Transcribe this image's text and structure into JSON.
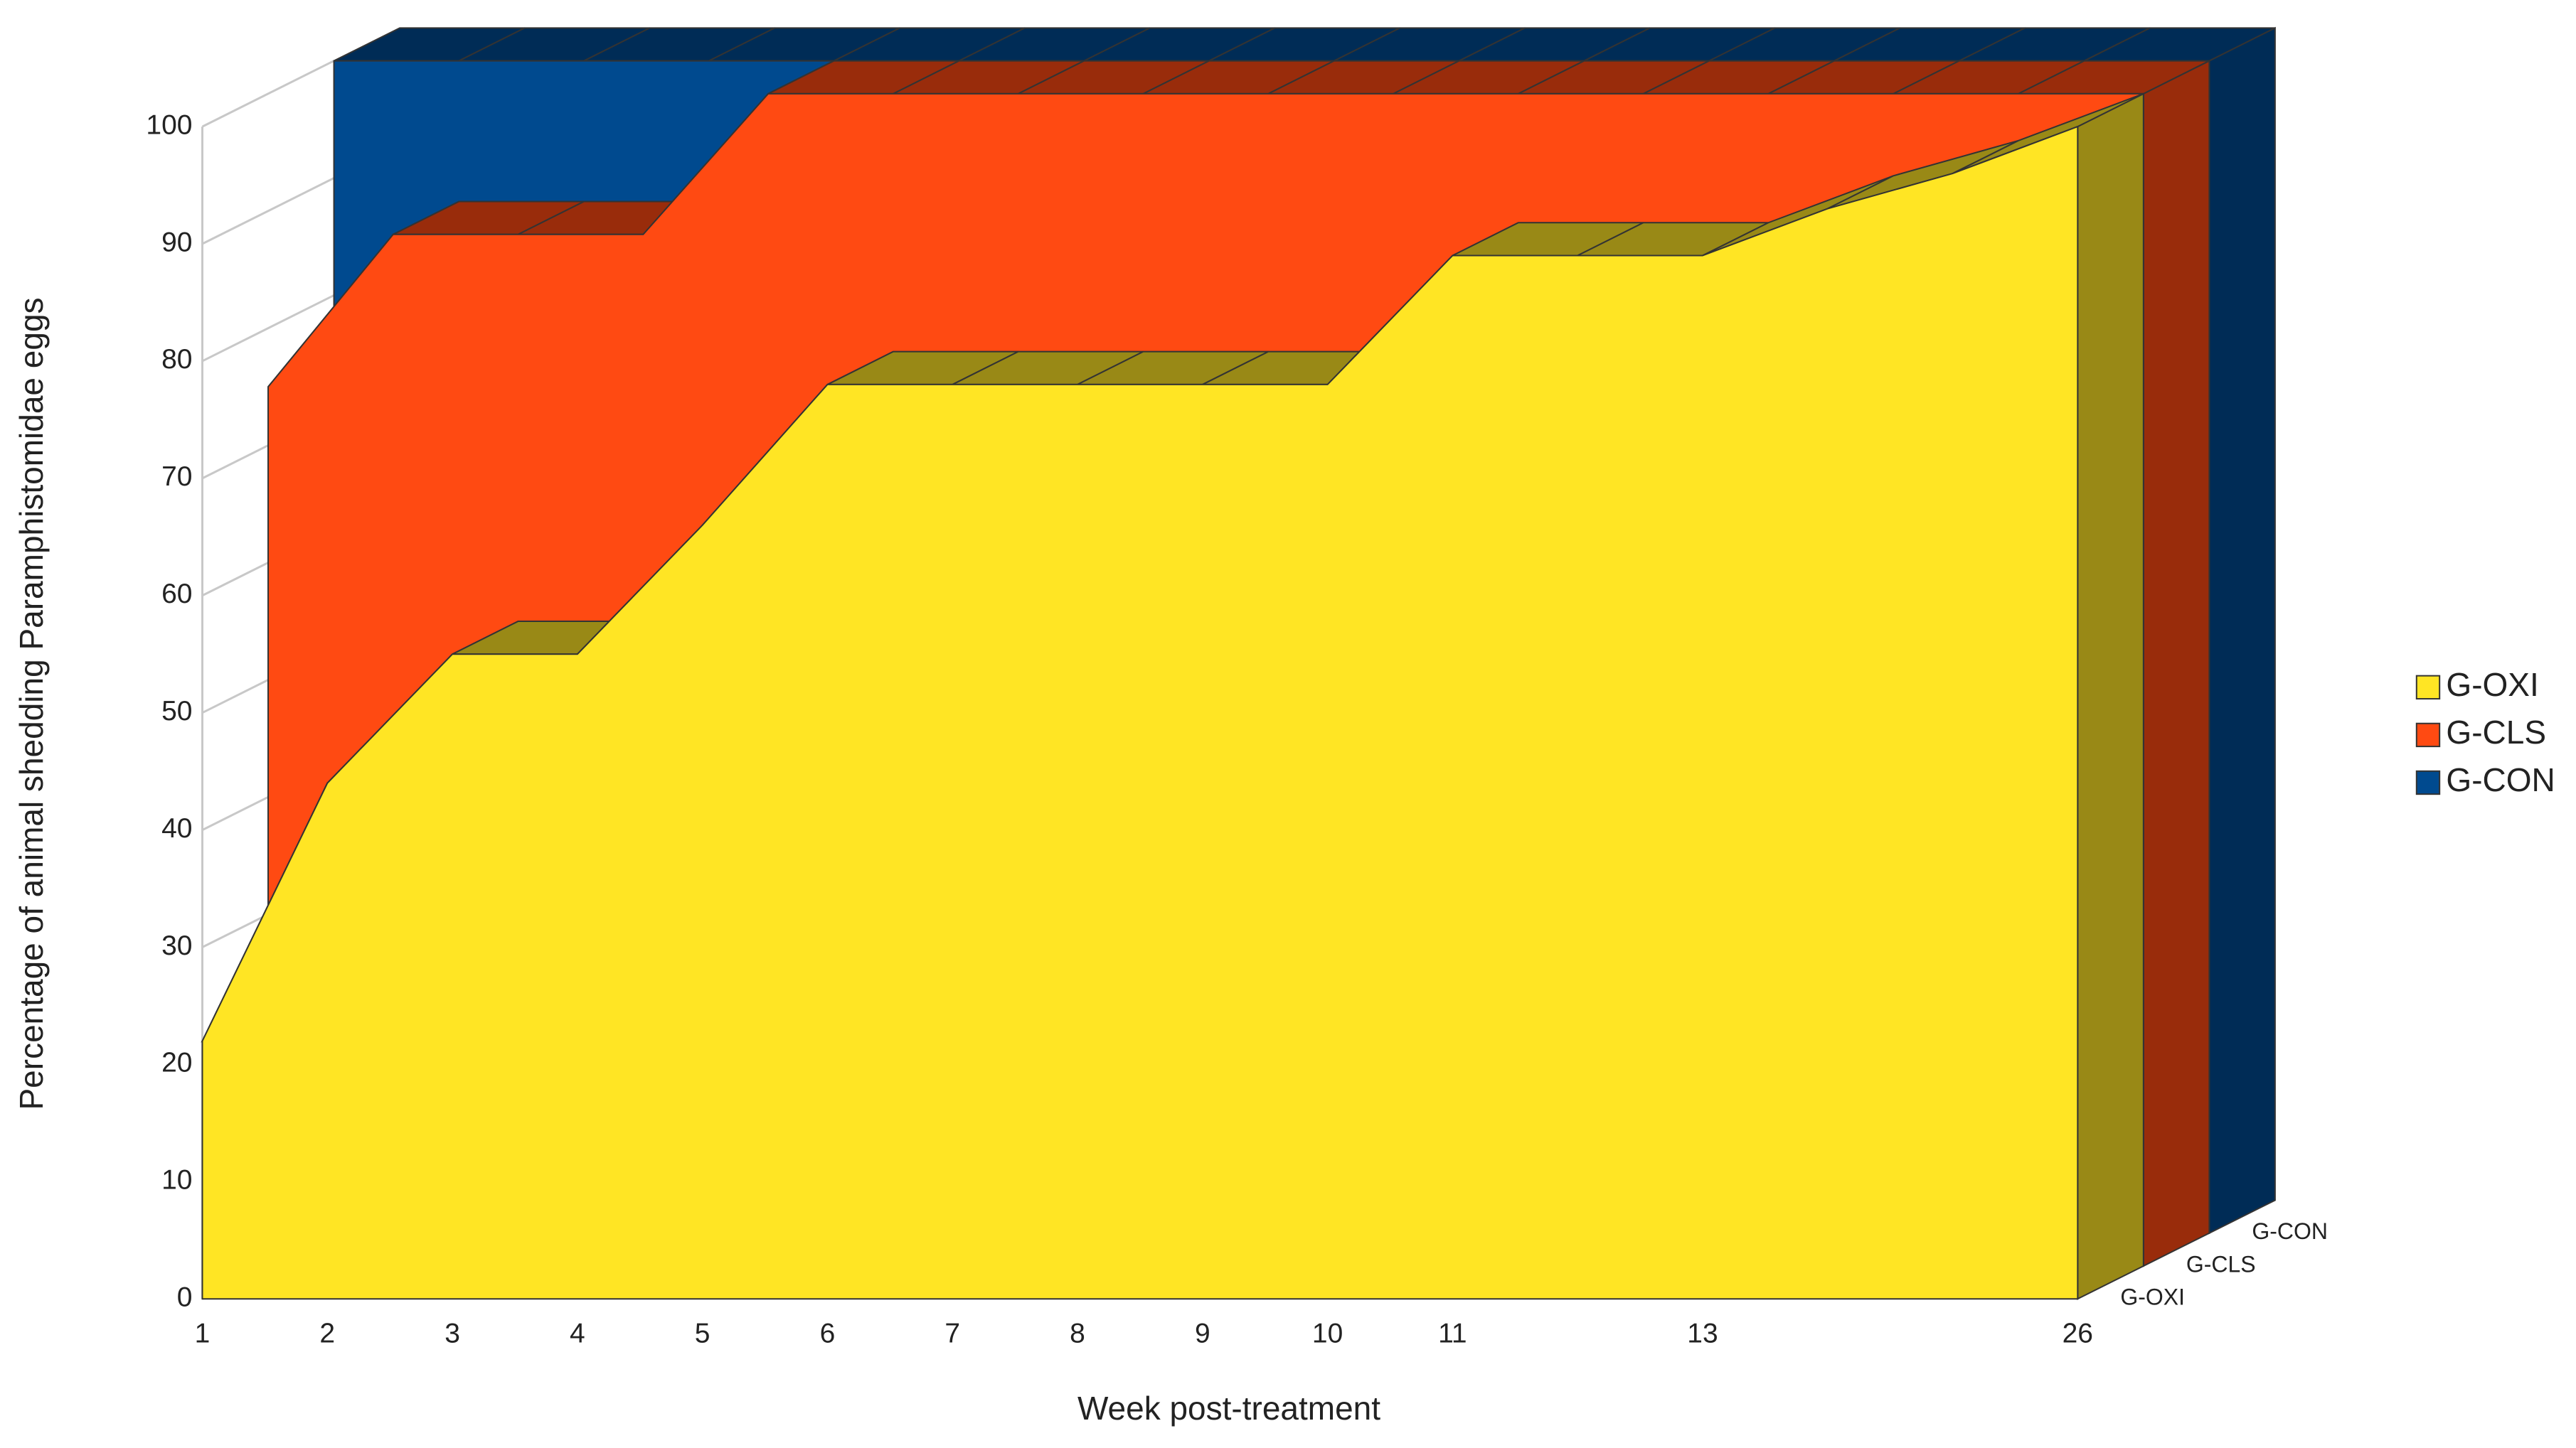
{
  "chart_data": {
    "type": "area3d",
    "x_label": "Week post-treatment",
    "y_label": "Percentage of animal shedding Paramphistomidae eggs",
    "categories": [
      "1",
      "2",
      "3",
      "4",
      "5",
      "6",
      "7",
      "8",
      "9",
      "10",
      "11",
      null,
      "13",
      null,
      null,
      "26"
    ],
    "series": [
      {
        "name": "G-OXI",
        "color": "#ffe524",
        "values": [
          22,
          44,
          55,
          55,
          66,
          78,
          78,
          78,
          78,
          78,
          89,
          89,
          89,
          93,
          96,
          100
        ]
      },
      {
        "name": "G-CLS",
        "color": "#ff4a12",
        "values": [
          75,
          88,
          88,
          88,
          100,
          100,
          100,
          100,
          100,
          100,
          100,
          100,
          100,
          100,
          100,
          100
        ]
      },
      {
        "name": "G-CON",
        "color": "#004a8f",
        "values": [
          100,
          100,
          100,
          100,
          100,
          100,
          100,
          100,
          100,
          100,
          100,
          100,
          100,
          100,
          100,
          100
        ]
      }
    ],
    "ylim": [
      0,
      100
    ],
    "yticks": [
      0,
      10,
      20,
      30,
      40,
      50,
      60,
      70,
      80,
      90,
      100
    ],
    "grid": true
  }
}
